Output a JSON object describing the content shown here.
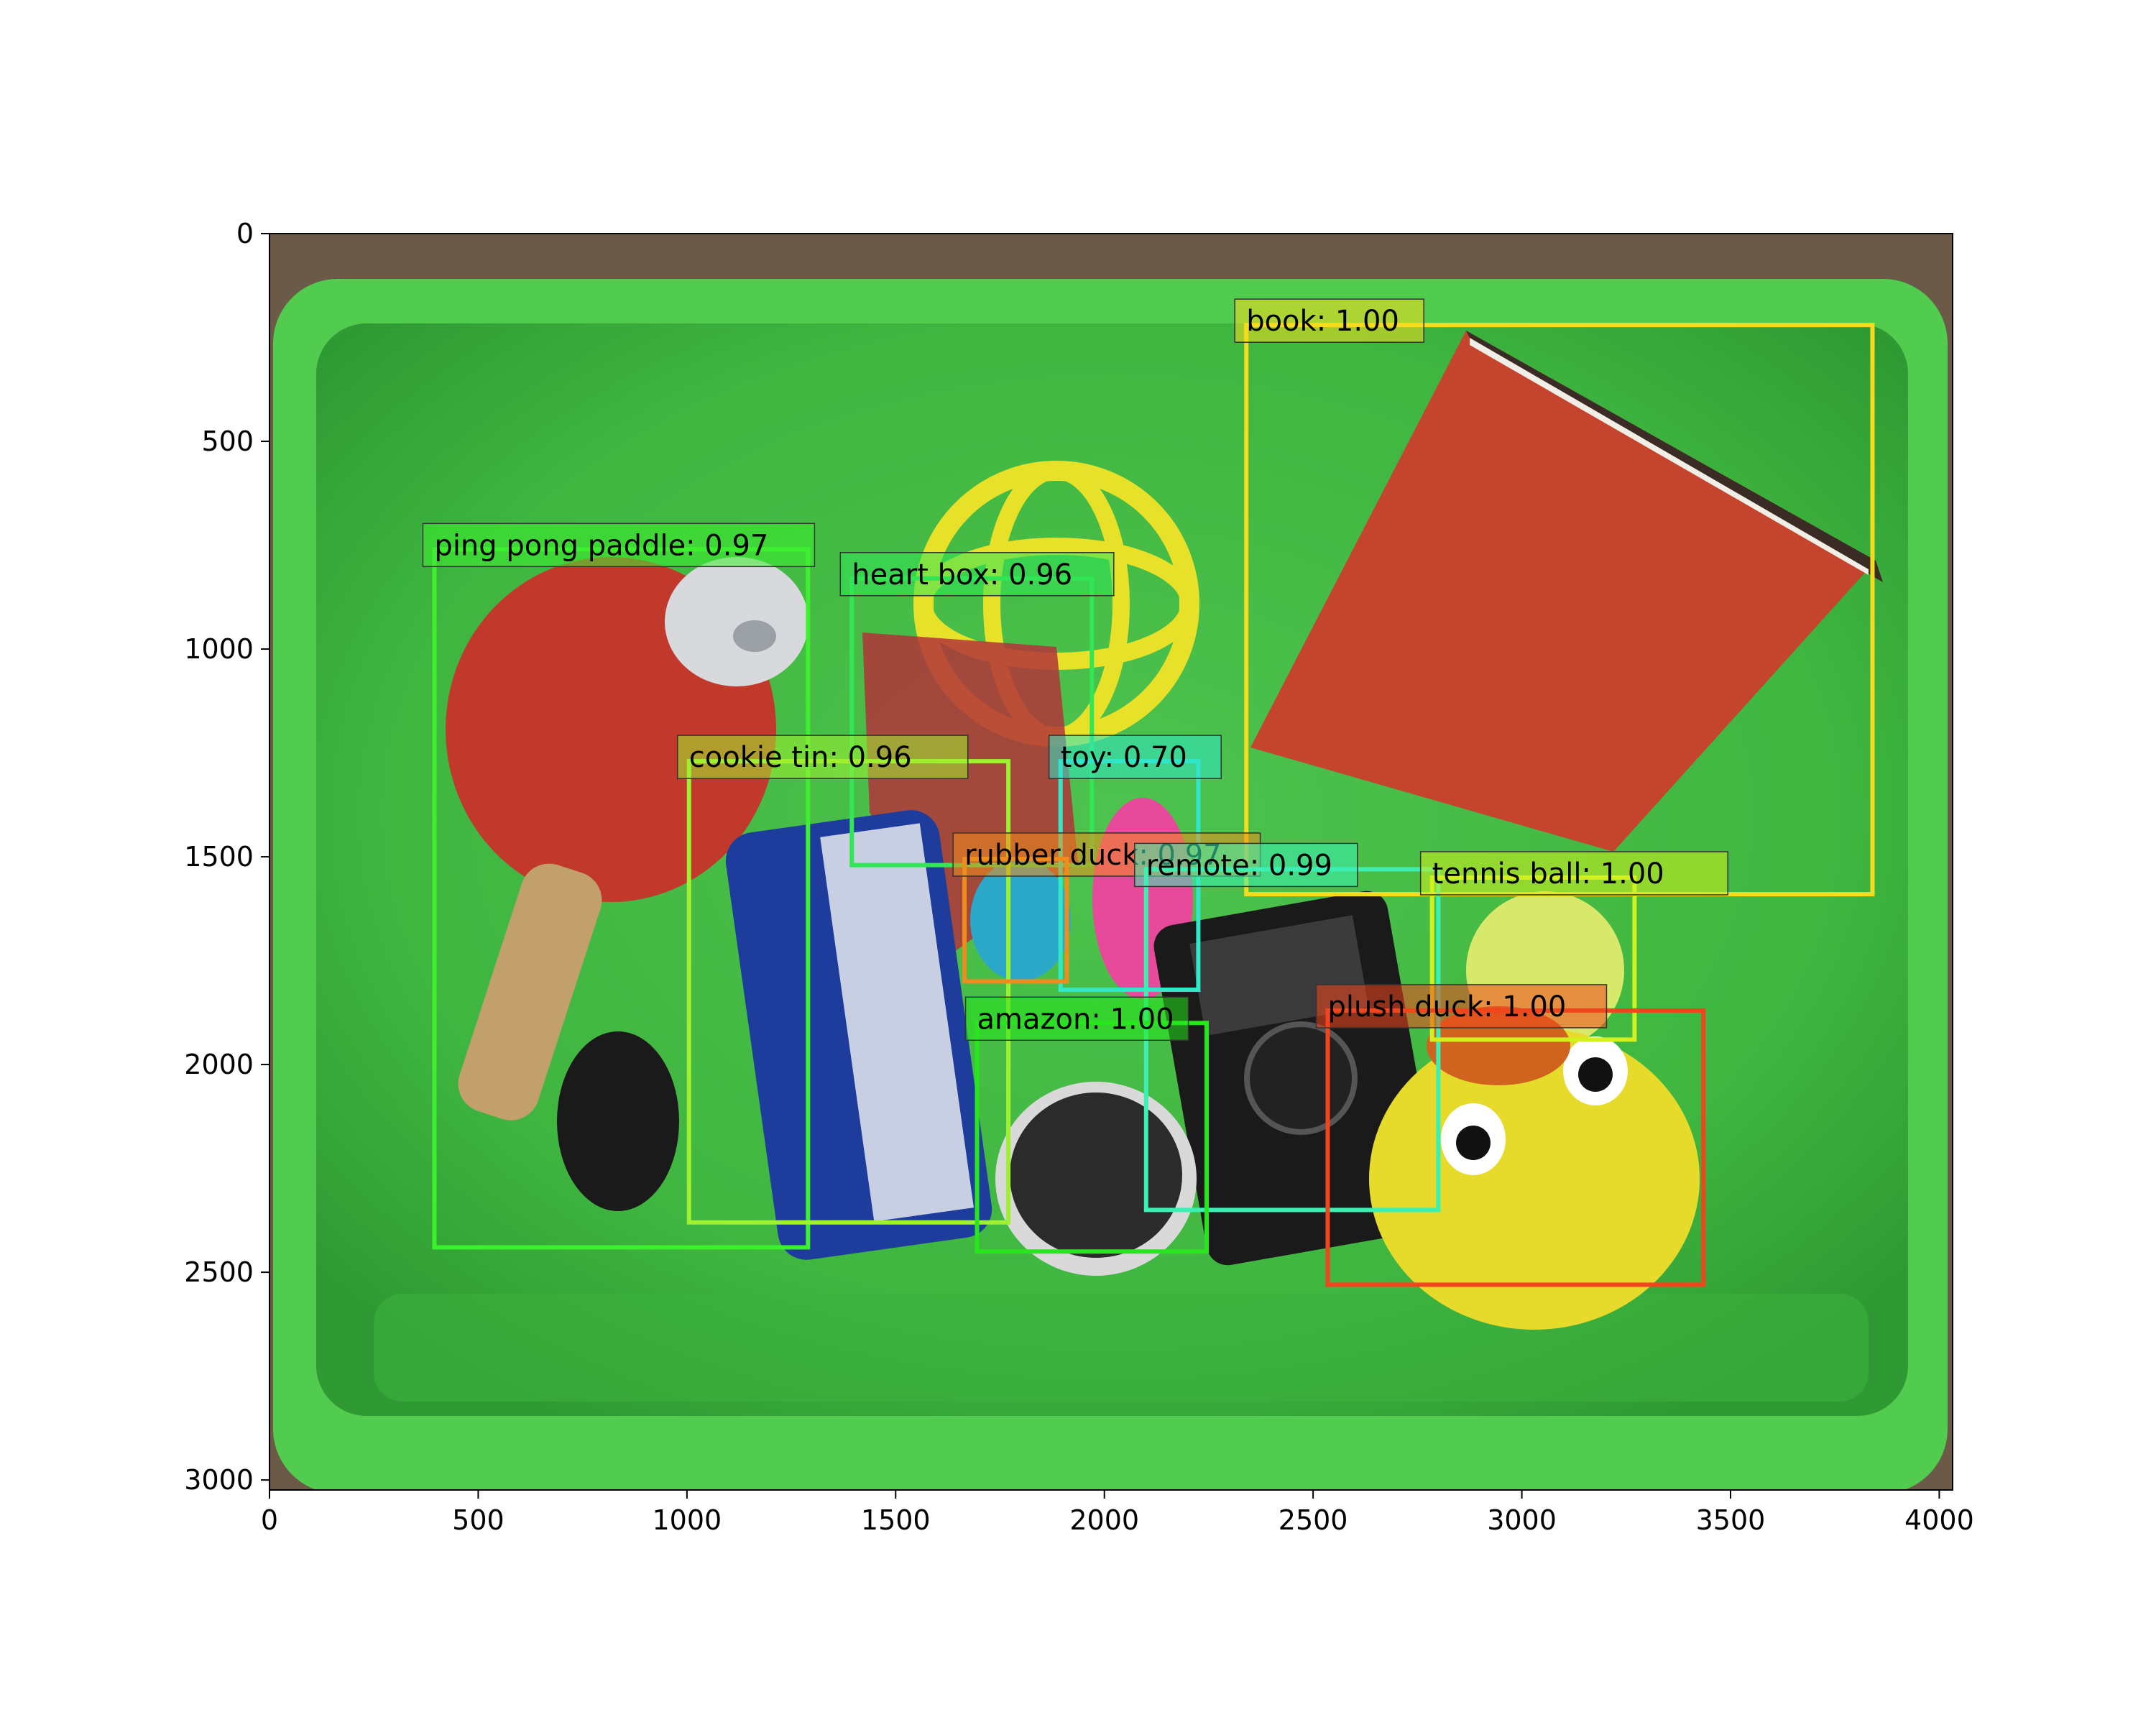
{
  "image": {
    "width_units": 4032,
    "height_units": 3024,
    "description": "Overhead photo of a green plastic bin filled with household objects on a carpet"
  },
  "axes": {
    "x_ticks": [
      {
        "value": 0,
        "label": "0"
      },
      {
        "value": 500,
        "label": "500"
      },
      {
        "value": 1000,
        "label": "1000"
      },
      {
        "value": 1500,
        "label": "1500"
      },
      {
        "value": 2000,
        "label": "2000"
      },
      {
        "value": 2500,
        "label": "2500"
      },
      {
        "value": 3000,
        "label": "3000"
      },
      {
        "value": 3500,
        "label": "3500"
      },
      {
        "value": 4000,
        "label": "4000"
      }
    ],
    "y_ticks": [
      {
        "value": 0,
        "label": "0"
      },
      {
        "value": 500,
        "label": "500"
      },
      {
        "value": 1000,
        "label": "1000"
      },
      {
        "value": 1500,
        "label": "1500"
      },
      {
        "value": 2000,
        "label": "2000"
      },
      {
        "value": 2500,
        "label": "2500"
      },
      {
        "value": 3000,
        "label": "3000"
      }
    ]
  },
  "detections": [
    {
      "label": "book: 1.00",
      "x1": 2340,
      "y1": 220,
      "x2": 3840,
      "y2": 1590,
      "color": "#f5dc1e"
    },
    {
      "label": "ping pong paddle: 0.97",
      "x1": 395,
      "y1": 760,
      "x2": 1290,
      "y2": 2440,
      "color": "#3cf02d"
    },
    {
      "label": "heart box: 0.96",
      "x1": 1395,
      "y1": 830,
      "x2": 1970,
      "y2": 1520,
      "color": "#32e655"
    },
    {
      "label": "cookie tin: 0.96",
      "x1": 1005,
      "y1": 1270,
      "x2": 1770,
      "y2": 2380,
      "color": "#a0f032"
    },
    {
      "label": "toy: 0.70",
      "x1": 1895,
      "y1": 1270,
      "x2": 2225,
      "y2": 1820,
      "color": "#32e6c8"
    },
    {
      "label": "rubber duck: 0.97",
      "x1": 1665,
      "y1": 1505,
      "x2": 1910,
      "y2": 1800,
      "color": "#f08c1e"
    },
    {
      "label": "remote: 0.99",
      "x1": 2100,
      "y1": 1530,
      "x2": 2800,
      "y2": 2350,
      "color": "#3cf0b4"
    },
    {
      "label": "tennis ball: 1.00",
      "x1": 2785,
      "y1": 1550,
      "x2": 3270,
      "y2": 1940,
      "color": "#d2f01e"
    },
    {
      "label": "amazon: 1.00",
      "x1": 1695,
      "y1": 1900,
      "x2": 2245,
      "y2": 2450,
      "color": "#28e61e"
    },
    {
      "label": "plush duck: 1.00",
      "x1": 2535,
      "y1": 1870,
      "x2": 3435,
      "y2": 2530,
      "color": "#f0461e"
    }
  ]
}
